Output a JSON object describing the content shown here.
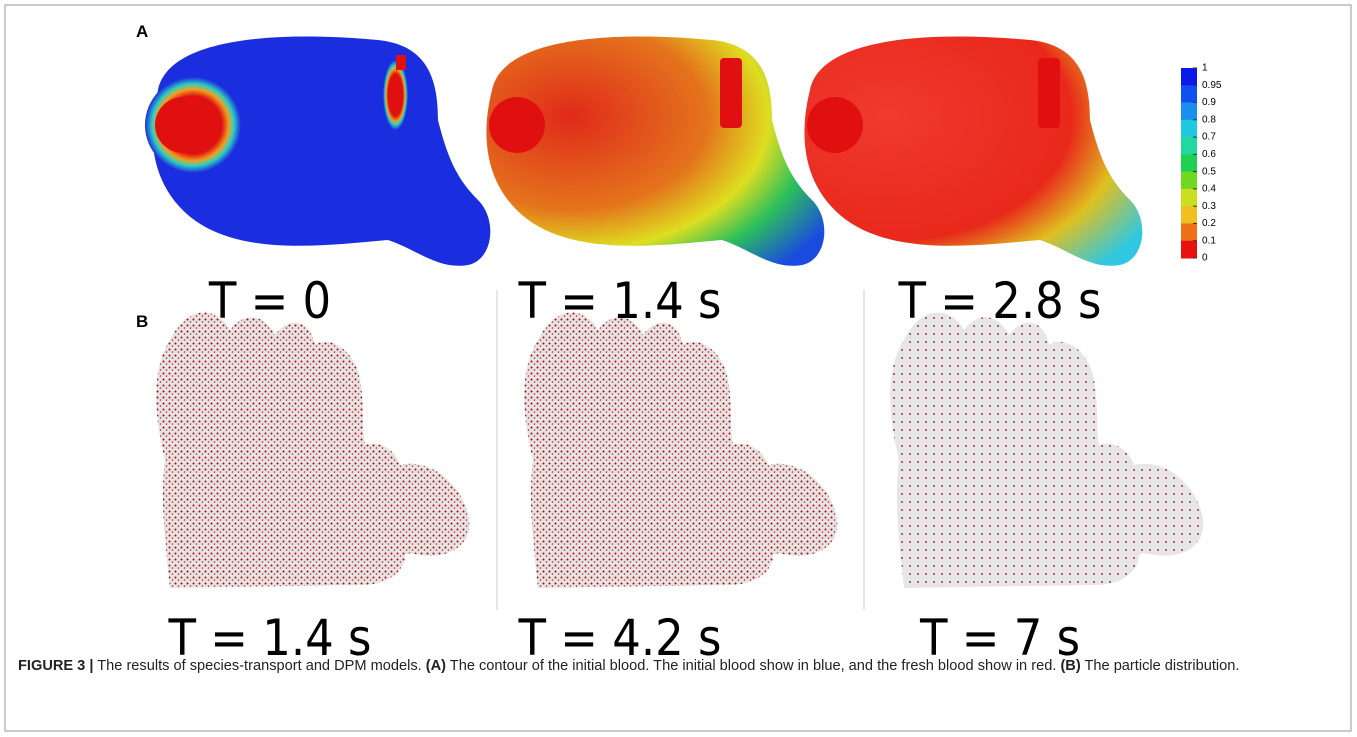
{
  "panels": [
    {
      "label": "A",
      "times": [
        "T = 0",
        "T = 1.4 s",
        "T = 2.8 s"
      ]
    },
    {
      "label": "B",
      "times": [
        "T = 1.4 s",
        "T = 4.2 s",
        "T = 7 s"
      ]
    }
  ],
  "colorbar": {
    "ticks": [
      1,
      0.95,
      0.9,
      0.8,
      0.7,
      0.6,
      0.5,
      0.4,
      0.3,
      0.2,
      0.1,
      0
    ]
  },
  "caption": {
    "figure": "FIGURE 3 |",
    "text1": " The results of species-transport and DPM models. ",
    "a": "(A)",
    "text2": " The contour of the initial blood. The initial blood show in blue, and the fresh blood show in red. ",
    "b": "(B)",
    "text3": " The particle distribution."
  }
}
